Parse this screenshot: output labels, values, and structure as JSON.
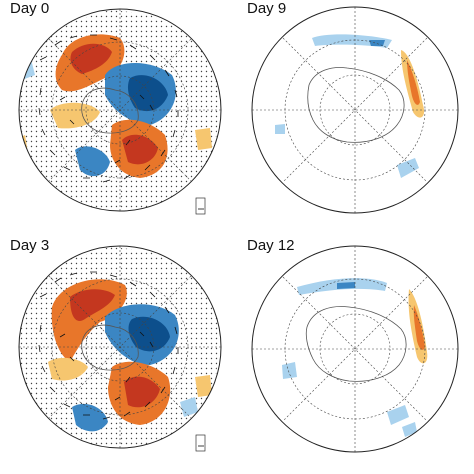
{
  "figure": {
    "panels": [
      {
        "id": "day0",
        "title": "Day 0",
        "has_vectors": true
      },
      {
        "id": "day9",
        "title": "Day 9",
        "has_vectors": false
      },
      {
        "id": "day3",
        "title": "Day 3",
        "has_vectors": true
      },
      {
        "id": "day12",
        "title": "Day 12",
        "has_vectors": false
      }
    ],
    "colors": {
      "positive_strong": "#c4371f",
      "positive_mid": "#e8762a",
      "positive_weak": "#f6c66f",
      "negative_strong": "#0d4f8c",
      "negative_mid": "#3b86c3",
      "negative_weak": "#a9d2ee",
      "coastline": "#555555",
      "grid": "#444444",
      "stipple": "#222222"
    }
  }
}
